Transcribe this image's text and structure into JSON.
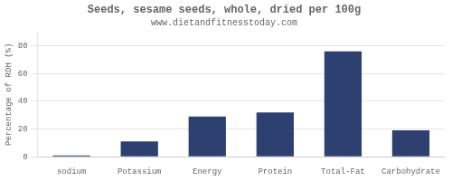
{
  "chart_data": {
    "type": "bar",
    "title": "Seeds, sesame seeds, whole, dried per 100g",
    "subtitle": "www.dietandfitnesstoday.com",
    "categories": [
      "sodium",
      "Potassium",
      "Energy",
      "Protein",
      "Total-Fat",
      "Carbohydrate"
    ],
    "values": [
      1,
      11,
      29,
      32,
      76,
      19
    ],
    "color": "#2e4070",
    "ylabel": "Percentage of RDH (%)",
    "ylim": [
      0,
      90
    ],
    "yticks": [
      0,
      20,
      40,
      60,
      80
    ],
    "grid": true
  }
}
